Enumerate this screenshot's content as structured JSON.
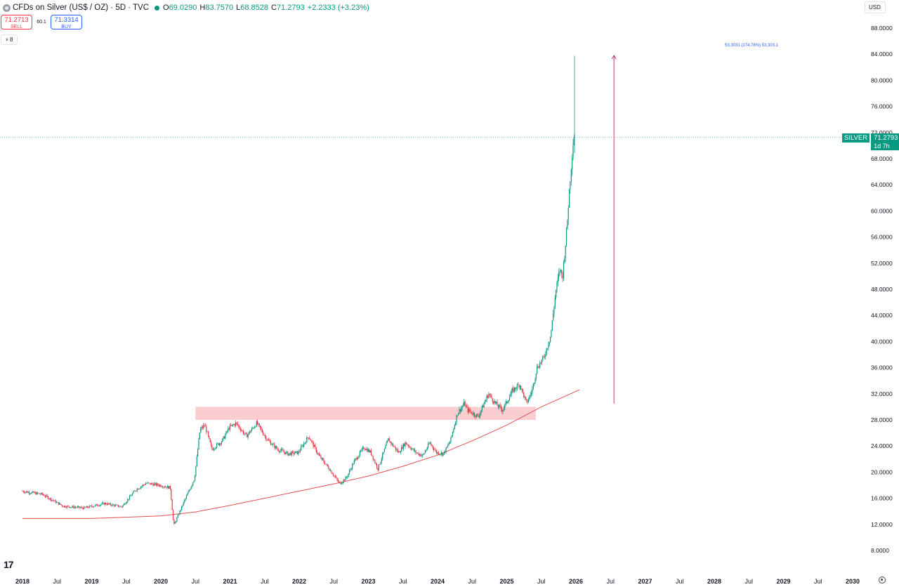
{
  "legend": {
    "symbol_icon": "silver-coin-icon",
    "title": "CFDs on Silver (US$ / OZ) · 5D · TVC",
    "status_color": "#089981",
    "o_label": "O",
    "o_value": "69.0290",
    "h_label": "H",
    "h_value": "83.7570",
    "l_label": "L",
    "l_value": "68.8528",
    "c_label": "C",
    "c_value": "71.2793",
    "change": "+2.2333 (+3.23%)"
  },
  "trade": {
    "sell_price": "71.2713",
    "sell_label": "SELL",
    "spread": "60.1",
    "buy_price": "71.3314",
    "buy_label": "BUY"
  },
  "indicators_toggle": {
    "count": "8",
    "icon": "chevron-down-icon"
  },
  "currency": "USD",
  "price_label": {
    "symbol": "SILVER",
    "price": "71.2793",
    "countdown": "1d 7h"
  },
  "measure": {
    "text": "53.3031 (174.78%) 53,303.1"
  },
  "logo_icon": "tradingview-logo-icon",
  "settings_icon": "gear-icon",
  "colors": {
    "up": "#089981",
    "down": "#f23645",
    "ma": "#e55050",
    "zone": "#f9c9cc",
    "measure": "#b0306a"
  },
  "chart_data": {
    "type": "candlestick",
    "title": "CFDs on Silver (US$ / OZ)",
    "interval": "5D",
    "ylim": [
      8,
      88
    ],
    "y_ticks": [
      "88.0000",
      "84.0000",
      "80.0000",
      "76.0000",
      "72.0000",
      "68.0000",
      "64.0000",
      "60.0000",
      "56.0000",
      "52.0000",
      "48.0000",
      "44.0000",
      "40.0000",
      "36.0000",
      "32.0000",
      "28.0000",
      "24.0000",
      "20.0000",
      "16.0000",
      "12.0000",
      "8.0000"
    ],
    "x_ticks": [
      "2018",
      "Jul",
      "2019",
      "Jul",
      "2020",
      "Jul",
      "2021",
      "Jul",
      "2022",
      "Jul",
      "2023",
      "Jul",
      "2024",
      "Jul",
      "2025",
      "Jul",
      "2026",
      "Jul",
      "2027",
      "Jul",
      "2028",
      "Jul",
      "2029",
      "Jul",
      "2030"
    ],
    "last_price": 71.2793,
    "price_path": [
      [
        "2018.0",
        17.1
      ],
      [
        "2018.3",
        16.6
      ],
      [
        "2018.6",
        14.8
      ],
      [
        "2018.9",
        14.5
      ],
      [
        "2019.2",
        15.2
      ],
      [
        "2019.45",
        14.7
      ],
      [
        "2019.65",
        17.3
      ],
      [
        "2019.8",
        18.3
      ],
      [
        "2020.0",
        18.0
      ],
      [
        "2020.15",
        17.6
      ],
      [
        "2020.2",
        11.8
      ],
      [
        "2020.35",
        15.5
      ],
      [
        "2020.5",
        19.0
      ],
      [
        "2020.58",
        26.5
      ],
      [
        "2020.65",
        27.2
      ],
      [
        "2020.75",
        23.5
      ],
      [
        "2020.9",
        24.8
      ],
      [
        "2021.0",
        26.8
      ],
      [
        "2021.1",
        27.5
      ],
      [
        "2021.25",
        25.5
      ],
      [
        "2021.4",
        27.5
      ],
      [
        "2021.55",
        25.0
      ],
      [
        "2021.7",
        23.5
      ],
      [
        "2021.85",
        22.8
      ],
      [
        "2022.0",
        23.0
      ],
      [
        "2022.15",
        25.5
      ],
      [
        "2022.3",
        22.5
      ],
      [
        "2022.45",
        20.5
      ],
      [
        "2022.6",
        18.2
      ],
      [
        "2022.7",
        19.2
      ],
      [
        "2022.8",
        21.5
      ],
      [
        "2022.95",
        23.8
      ],
      [
        "2023.05",
        23.0
      ],
      [
        "2023.15",
        20.5
      ],
      [
        "2023.3",
        25.0
      ],
      [
        "2023.45",
        23.0
      ],
      [
        "2023.55",
        24.5
      ],
      [
        "2023.7",
        23.0
      ],
      [
        "2023.8",
        22.5
      ],
      [
        "2023.9",
        24.5
      ],
      [
        "2024.0",
        23.0
      ],
      [
        "2024.1",
        22.8
      ],
      [
        "2024.2",
        24.8
      ],
      [
        "2024.3",
        29.0
      ],
      [
        "2024.4",
        30.5
      ],
      [
        "2024.45",
        29.5
      ],
      [
        "2024.6",
        28.5
      ],
      [
        "2024.75",
        32.0
      ],
      [
        "2024.85",
        30.5
      ],
      [
        "2024.95",
        29.5
      ],
      [
        "2025.1",
        32.5
      ],
      [
        "2025.2",
        33.5
      ],
      [
        "2025.3",
        30.5
      ],
      [
        "2025.38",
        32.5
      ],
      [
        "2025.45",
        36.0
      ],
      [
        "2025.55",
        37.5
      ],
      [
        "2025.65",
        41.0
      ],
      [
        "2025.72",
        47.5
      ],
      [
        "2025.78",
        51.0
      ],
      [
        "2025.82",
        50.0
      ],
      [
        "2025.88",
        57.0
      ],
      [
        "2025.92",
        63.5
      ],
      [
        "2025.96",
        69.0
      ],
      [
        "2025.98",
        71.28
      ]
    ],
    "moving_average": [
      [
        "2018.0",
        12.9
      ],
      [
        "2019.0",
        12.9
      ],
      [
        "2020.0",
        13.3
      ],
      [
        "2020.5",
        13.9
      ],
      [
        "2021.0",
        14.9
      ],
      [
        "2021.5",
        16.0
      ],
      [
        "2022.0",
        17.1
      ],
      [
        "2022.5",
        18.2
      ],
      [
        "2023.0",
        19.4
      ],
      [
        "2023.5",
        20.9
      ],
      [
        "2024.0",
        22.6
      ],
      [
        "2024.5",
        24.8
      ],
      [
        "2025.0",
        27.2
      ],
      [
        "2025.5",
        30.0
      ],
      [
        "2026.05",
        32.6
      ]
    ],
    "resistance_zone": {
      "from": "2020.5",
      "to": "2025.42",
      "low": 28.0,
      "high": 30.0
    },
    "measure_arrow": {
      "at": "2026.55",
      "from": 30.5,
      "to": 83.8,
      "label": "53.3031 (174.78%) 53,303.1"
    },
    "grid": false,
    "legend_position": "top-left"
  }
}
